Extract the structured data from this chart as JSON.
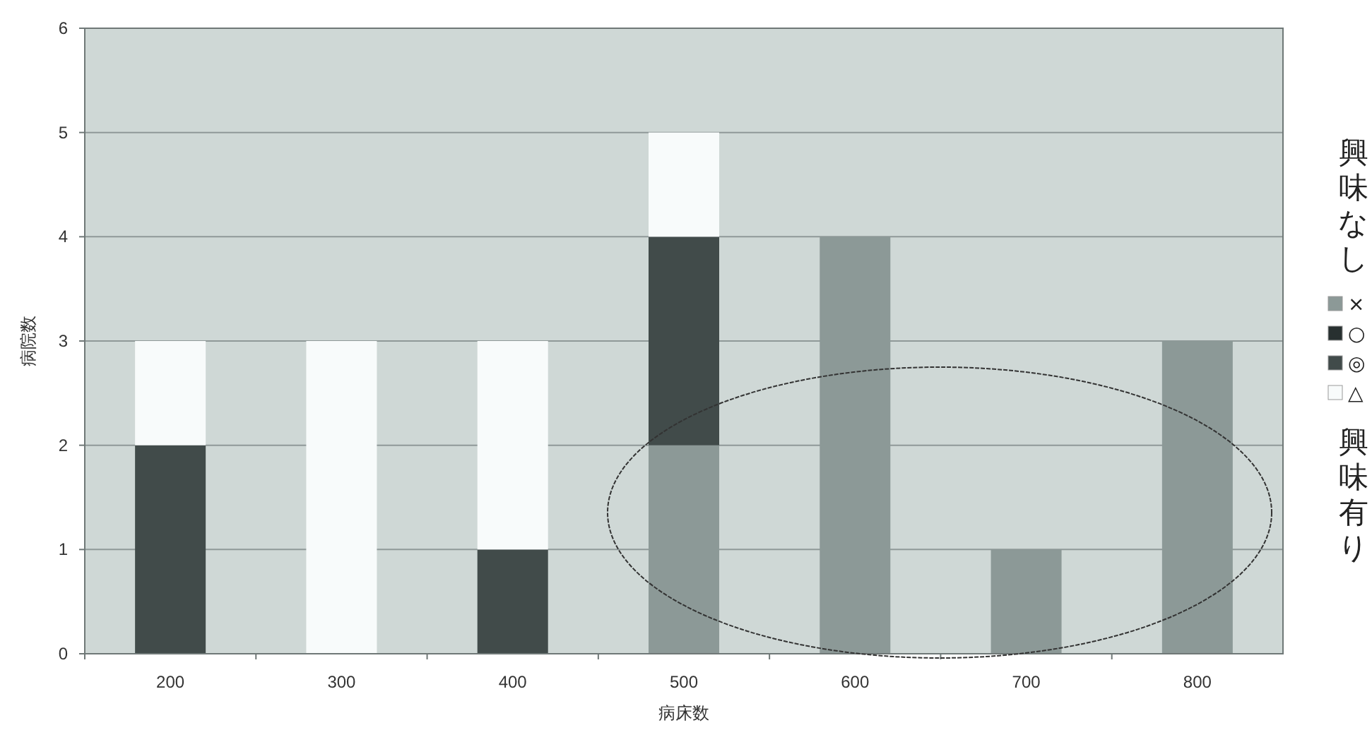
{
  "chart_data": {
    "type": "bar",
    "stacked": true,
    "xlabel": "病床数",
    "ylabel": "病院数",
    "categories": [
      "200",
      "300",
      "400",
      "500",
      "600",
      "700",
      "800"
    ],
    "series": [
      {
        "name": "×",
        "color": "#8c9997",
        "values": [
          0,
          0,
          0,
          2,
          4,
          1,
          3
        ]
      },
      {
        "name": "○",
        "color": "#283030",
        "values": [
          0,
          0,
          0,
          0,
          0,
          0,
          0
        ]
      },
      {
        "name": "◎",
        "color": "#414b4a",
        "values": [
          2,
          0,
          1,
          2,
          0,
          0,
          0
        ]
      },
      {
        "name": "△",
        "color": "#f8fbfb",
        "values": [
          1,
          3,
          2,
          1,
          0,
          0,
          0
        ]
      }
    ],
    "ylim": [
      0,
      6
    ],
    "yticks": [
      0,
      1,
      2,
      3,
      4,
      5,
      6
    ],
    "grid": "y",
    "legend": "right",
    "annotations": [
      "興味なし",
      "興味有り"
    ]
  }
}
